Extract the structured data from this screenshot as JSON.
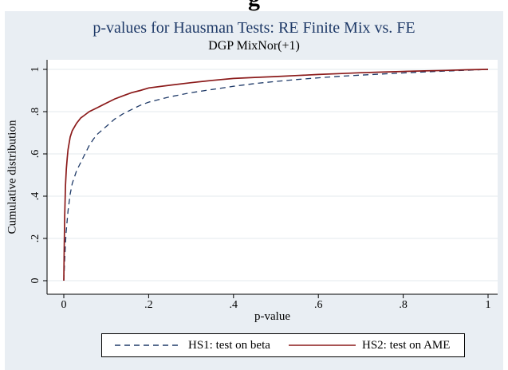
{
  "heading_fragment": "g",
  "chart_data": {
    "type": "line",
    "title": "p-values for Hausman Tests: RE Finite Mix vs. FE",
    "subtitle": "DGP MixNor(+1)",
    "xlabel": "p-value",
    "ylabel": "Cumulative distribution",
    "xlim": [
      0,
      1
    ],
    "ylim": [
      0,
      1
    ],
    "xticks": [
      0,
      0.2,
      0.4,
      0.6,
      0.8,
      1
    ],
    "xtick_labels": [
      "0",
      ".2",
      ".4",
      ".6",
      ".8",
      "1"
    ],
    "yticks": [
      0,
      0.2,
      0.4,
      0.6,
      0.8,
      1
    ],
    "ytick_labels": [
      "0",
      ".2",
      ".4",
      ".6",
      ".8",
      "1"
    ],
    "grid": "horizontal",
    "legend_position": "bottom",
    "series": [
      {
        "name": "HS1: test on beta",
        "color": "#1f3a68",
        "style": "dashed",
        "points": [
          [
            0,
            0
          ],
          [
            0.002,
            0.1
          ],
          [
            0.005,
            0.22
          ],
          [
            0.01,
            0.33
          ],
          [
            0.015,
            0.41
          ],
          [
            0.02,
            0.46
          ],
          [
            0.03,
            0.52
          ],
          [
            0.04,
            0.56
          ],
          [
            0.05,
            0.6
          ],
          [
            0.06,
            0.64
          ],
          [
            0.07,
            0.67
          ],
          [
            0.08,
            0.695
          ],
          [
            0.1,
            0.73
          ],
          [
            0.12,
            0.765
          ],
          [
            0.14,
            0.79
          ],
          [
            0.16,
            0.81
          ],
          [
            0.18,
            0.83
          ],
          [
            0.2,
            0.845
          ],
          [
            0.25,
            0.87
          ],
          [
            0.3,
            0.89
          ],
          [
            0.35,
            0.905
          ],
          [
            0.4,
            0.92
          ],
          [
            0.45,
            0.933
          ],
          [
            0.5,
            0.943
          ],
          [
            0.55,
            0.952
          ],
          [
            0.6,
            0.96
          ],
          [
            0.65,
            0.967
          ],
          [
            0.7,
            0.973
          ],
          [
            0.75,
            0.978
          ],
          [
            0.8,
            0.983
          ],
          [
            0.85,
            0.988
          ],
          [
            0.9,
            0.992
          ],
          [
            0.95,
            0.996
          ],
          [
            1,
            1
          ]
        ]
      },
      {
        "name": "HS2: test on AME",
        "color": "#8b1a1a",
        "style": "solid",
        "points": [
          [
            0,
            0
          ],
          [
            0.001,
            0.15
          ],
          [
            0.002,
            0.3
          ],
          [
            0.004,
            0.45
          ],
          [
            0.006,
            0.53
          ],
          [
            0.008,
            0.58
          ],
          [
            0.01,
            0.62
          ],
          [
            0.015,
            0.68
          ],
          [
            0.02,
            0.71
          ],
          [
            0.03,
            0.745
          ],
          [
            0.04,
            0.77
          ],
          [
            0.05,
            0.785
          ],
          [
            0.06,
            0.8
          ],
          [
            0.08,
            0.82
          ],
          [
            0.1,
            0.84
          ],
          [
            0.12,
            0.86
          ],
          [
            0.14,
            0.875
          ],
          [
            0.16,
            0.89
          ],
          [
            0.18,
            0.9
          ],
          [
            0.2,
            0.912
          ],
          [
            0.25,
            0.925
          ],
          [
            0.3,
            0.937
          ],
          [
            0.35,
            0.948
          ],
          [
            0.4,
            0.957
          ],
          [
            0.45,
            0.962
          ],
          [
            0.5,
            0.966
          ],
          [
            0.55,
            0.971
          ],
          [
            0.6,
            0.976
          ],
          [
            0.65,
            0.98
          ],
          [
            0.7,
            0.984
          ],
          [
            0.75,
            0.987
          ],
          [
            0.8,
            0.99
          ],
          [
            0.85,
            0.993
          ],
          [
            0.9,
            0.995
          ],
          [
            0.95,
            0.998
          ],
          [
            1,
            1
          ]
        ]
      }
    ]
  }
}
